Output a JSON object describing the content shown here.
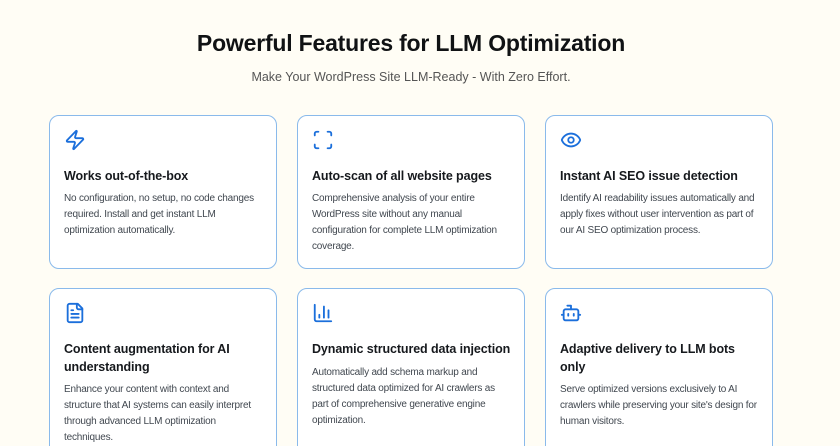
{
  "header": {
    "title": "Powerful Features for LLM Optimization",
    "subtitle": "Make Your WordPress Site LLM-Ready - With Zero Effort."
  },
  "colors": {
    "background": "#fffdf5",
    "card_border": "#8abaeb",
    "accent_icon_blue": "#1b6fdb"
  },
  "features": [
    {
      "icon": "zap-icon",
      "title": "Works out-of-the-box",
      "description": "No configuration, no setup, no code changes required. Install and get instant LLM optimization automatically."
    },
    {
      "icon": "scan-icon",
      "title": "Auto-scan of all website pages",
      "description": "Comprehensive analysis of your entire WordPress site without any manual configuration for complete LLM optimization coverage."
    },
    {
      "icon": "eye-icon",
      "title": "Instant AI SEO issue detection",
      "description": "Identify AI readability issues automatically and apply fixes without user intervention as part of our AI SEO optimization process."
    },
    {
      "icon": "file-text-icon",
      "title": "Content augmentation for AI understanding",
      "description": "Enhance your content with context and structure that AI systems can easily interpret through advanced LLM optimization techniques."
    },
    {
      "icon": "bar-chart-icon",
      "title": "Dynamic structured data injection",
      "description": "Automatically add schema markup and structured data optimized for AI crawlers as part of comprehensive generative engine optimization."
    },
    {
      "icon": "bot-icon",
      "title": "Adaptive delivery to LLM bots only",
      "description": "Serve optimized versions exclusively to AI crawlers while preserving your site's design for human visitors."
    }
  ]
}
